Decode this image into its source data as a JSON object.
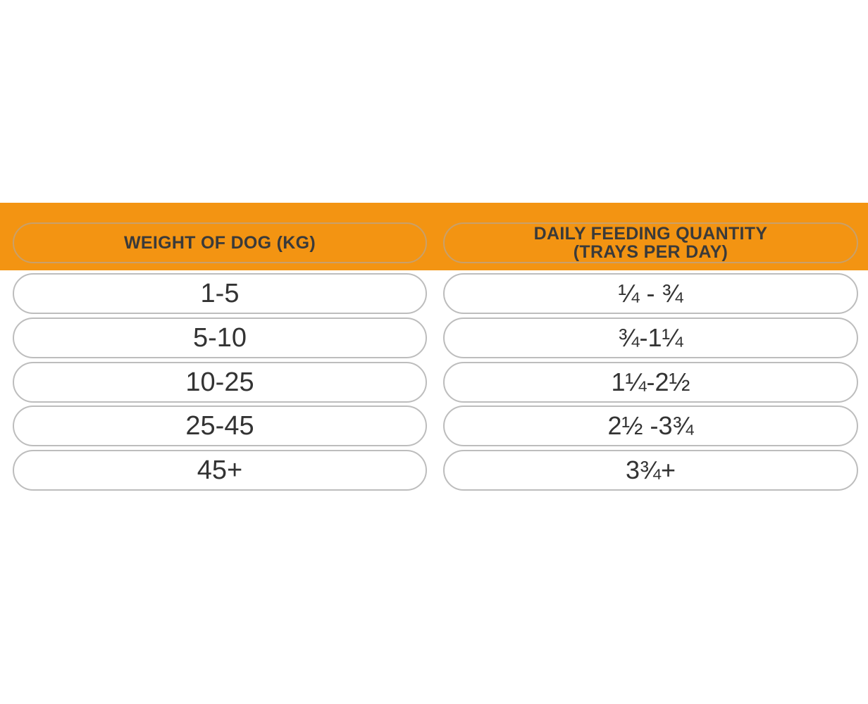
{
  "table": {
    "headers": {
      "weight": "WEIGHT OF DOG (KG)",
      "quantity_line1": "DAILY FEEDING QUANTITY",
      "quantity_line2": "(TRAYS PER DAY)"
    },
    "rows": [
      {
        "weight": "1-5",
        "quantity": "¼ - ¾"
      },
      {
        "weight": "5-10",
        "quantity": "¾-1¼"
      },
      {
        "weight": "10-25",
        "quantity": "1¼-2½"
      },
      {
        "weight": "25-45",
        "quantity": "2½ -3¾"
      },
      {
        "weight": "45+",
        "quantity": "3¾+"
      }
    ]
  },
  "colors": {
    "header_orange": "#f39412",
    "border_gray": "#bdbdbd",
    "text_dark": "#333333"
  }
}
